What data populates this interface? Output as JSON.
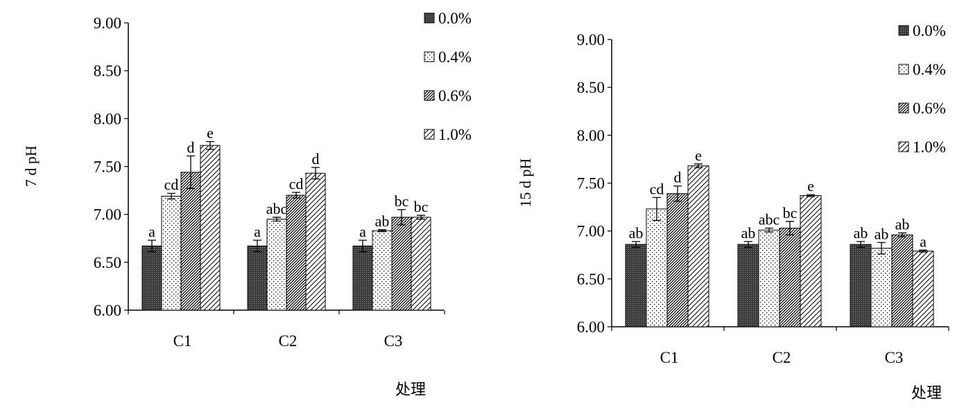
{
  "chart_data": [
    {
      "type": "bar",
      "ylabel": "7 d pH",
      "xlabel": "处理",
      "ylim": [
        6.0,
        9.0
      ],
      "yticks": [
        "6.00",
        "6.50",
        "7.00",
        "7.50",
        "8.00",
        "8.50",
        "9.00"
      ],
      "categories": [
        "C1",
        "C2",
        "C3"
      ],
      "legend_position": "top-right",
      "series": [
        {
          "name": "0.0%",
          "pattern": "dark",
          "values": [
            6.67,
            6.67,
            6.67
          ],
          "errors": [
            0.06,
            0.06,
            0.06
          ],
          "labels": [
            "a",
            "a",
            "a"
          ]
        },
        {
          "name": "0.4%",
          "pattern": "dots",
          "values": [
            7.19,
            6.95,
            6.83
          ],
          "errors": [
            0.03,
            0.02,
            0.01
          ],
          "labels": [
            "cd",
            "abc",
            "ab"
          ]
        },
        {
          "name": "0.6%",
          "pattern": "diag-dense",
          "values": [
            7.44,
            7.2,
            6.97
          ],
          "errors": [
            0.17,
            0.03,
            0.08
          ],
          "labels": [
            "d",
            "cd",
            "bc"
          ]
        },
        {
          "name": "1.0%",
          "pattern": "diag-sparse",
          "values": [
            7.72,
            7.43,
            6.97
          ],
          "errors": [
            0.04,
            0.06,
            0.02
          ],
          "labels": [
            "e",
            "d",
            "bc"
          ]
        }
      ]
    },
    {
      "type": "bar",
      "ylabel": "15 d pH",
      "xlabel": "处理",
      "ylim": [
        6.0,
        9.0
      ],
      "yticks": [
        "6.00",
        "6.50",
        "7.00",
        "7.50",
        "8.00",
        "8.50",
        "9.00"
      ],
      "categories": [
        "C1",
        "C2",
        "C3"
      ],
      "legend_position": "top-right",
      "series": [
        {
          "name": "0.0%",
          "pattern": "dark",
          "values": [
            6.86,
            6.86,
            6.86
          ],
          "errors": [
            0.03,
            0.03,
            0.03
          ],
          "labels": [
            "ab",
            "ab",
            "ab"
          ]
        },
        {
          "name": "0.4%",
          "pattern": "dots",
          "values": [
            7.23,
            7.01,
            6.82
          ],
          "errors": [
            0.12,
            0.02,
            0.06
          ],
          "labels": [
            "cd",
            "abc",
            "ab"
          ]
        },
        {
          "name": "0.6%",
          "pattern": "diag-dense",
          "values": [
            7.39,
            7.03,
            6.96
          ],
          "errors": [
            0.08,
            0.07,
            0.02
          ],
          "labels": [
            "d",
            "bc",
            "ab"
          ]
        },
        {
          "name": "1.0%",
          "pattern": "diag-sparse",
          "values": [
            7.68,
            7.37,
            6.79
          ],
          "errors": [
            0.02,
            0.01,
            0.01
          ],
          "labels": [
            "e",
            "e",
            "a"
          ]
        }
      ]
    }
  ]
}
